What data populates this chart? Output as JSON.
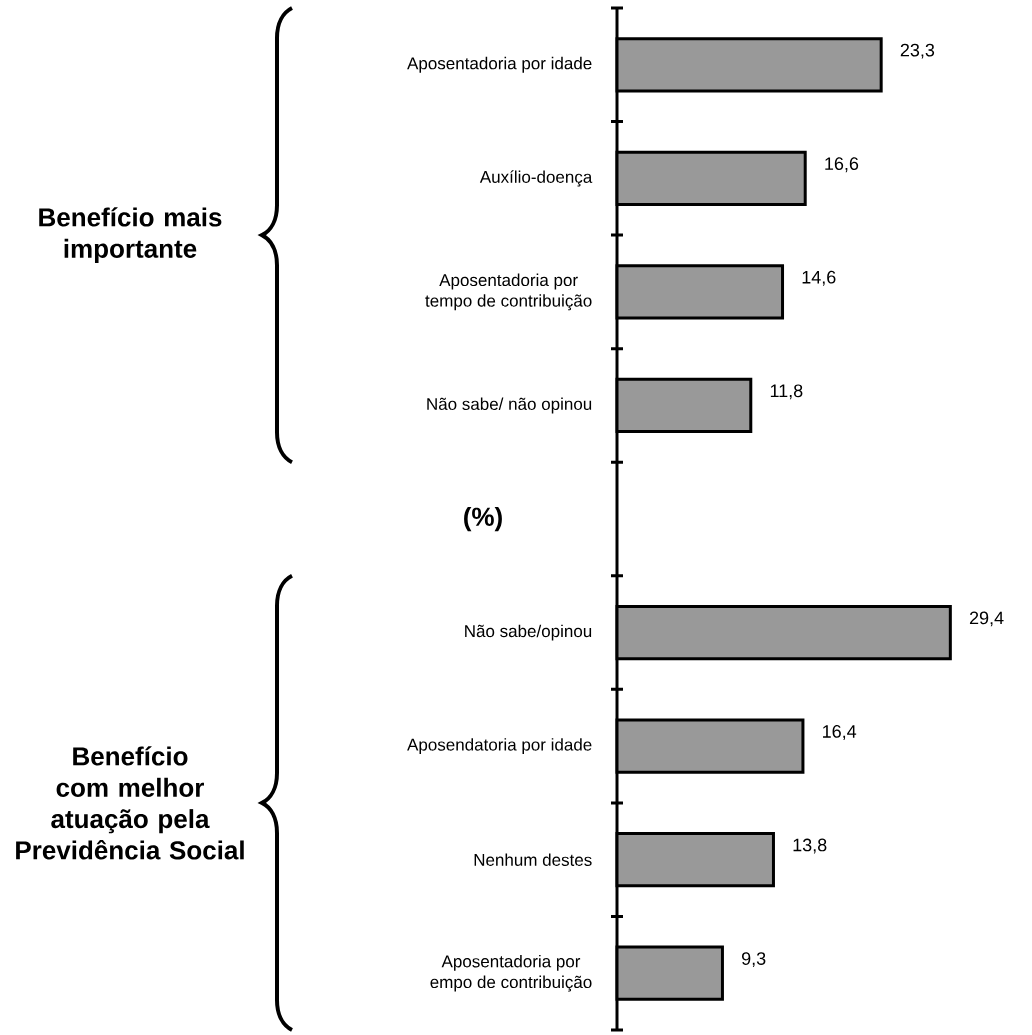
{
  "chart_data": {
    "type": "bar",
    "orientation": "horizontal",
    "xlabel": "(%)",
    "tick_labels": "y",
    "categories": [
      "Aposentadoria por idade",
      "Auxílio-doença",
      "Aposentadoria por\ntempo de contribuição",
      "Não sabe/ não opinou",
      null,
      "Não sabe/opinou",
      "Aposendatoria por idade",
      "Nenhum destes",
      "Aposentadoria por\nempo de contribuição"
    ],
    "values": [
      23.3,
      16.6,
      14.6,
      11.8,
      null,
      29.4,
      16.4,
      13.8,
      9.3
    ],
    "value_labels": [
      "23,3",
      "16,6",
      "14,6",
      "11,8",
      null,
      "29,4",
      "16,4",
      "13,8",
      "9,3"
    ],
    "color": "#999999",
    "annotations": [
      "Benefício mais importante",
      "Benefício com melhor atuação pela Previdência Social"
    ]
  }
}
